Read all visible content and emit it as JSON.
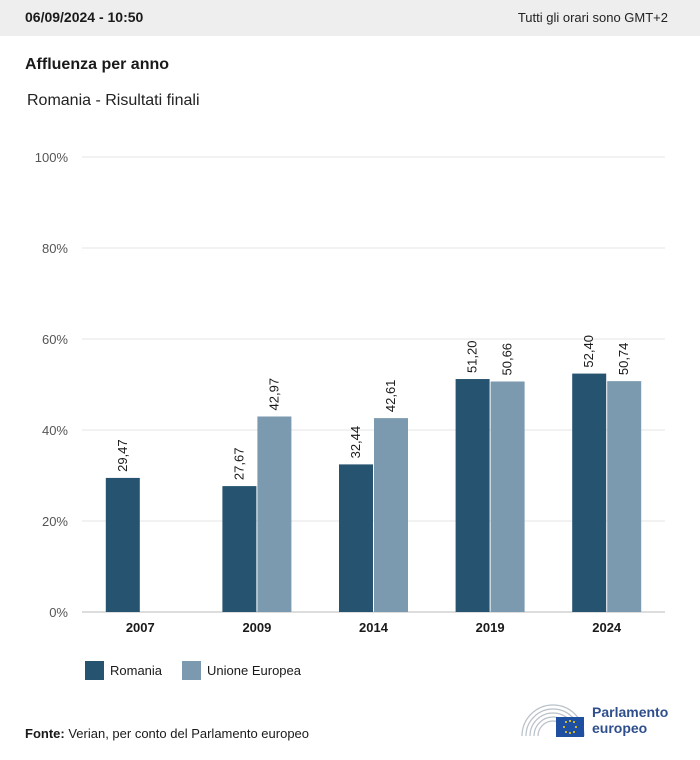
{
  "header": {
    "timestamp": "06/09/2024 - 10:50",
    "timezone_note": "Tutti gli orari sono GMT+2"
  },
  "colors": {
    "romania": "#26536f",
    "eu": "#7c9aaf",
    "grid": "#e5e5e5",
    "header_bg": "#eeeeee",
    "logo_blue": "#2f4f8c",
    "eu_flag": "#1f4fa0"
  },
  "chart_data": {
    "type": "bar",
    "title": "Affluenza per anno",
    "subtitle": "Romania - Risultati finali",
    "categories": [
      "2007",
      "2009",
      "2014",
      "2019",
      "2024"
    ],
    "series": [
      {
        "name": "Romania",
        "values": [
          29.47,
          27.67,
          32.44,
          51.2,
          52.4
        ],
        "labels": [
          "29,47",
          "27,67",
          "32,44",
          "51,20",
          "52,40"
        ]
      },
      {
        "name": "Unione Europea",
        "values": [
          null,
          42.97,
          42.61,
          50.66,
          50.74
        ],
        "labels": [
          "",
          "42,97",
          "42,61",
          "50,66",
          "50,74"
        ]
      }
    ],
    "ylim": [
      0,
      100
    ],
    "yticks": [
      "0%",
      "20%",
      "40%",
      "60%",
      "80%",
      "100%"
    ],
    "ytick_values": [
      0,
      20,
      40,
      60,
      80,
      100
    ],
    "grid": true,
    "legend_position": "bottom-left"
  },
  "legend": {
    "romania_label": "Romania",
    "eu_label": "Unione Europea"
  },
  "source": {
    "label": "Fonte:",
    "text": "Verian, per conto del Parlamento europeo"
  },
  "logo": {
    "line1": "Parlamento",
    "line2": "europeo"
  }
}
